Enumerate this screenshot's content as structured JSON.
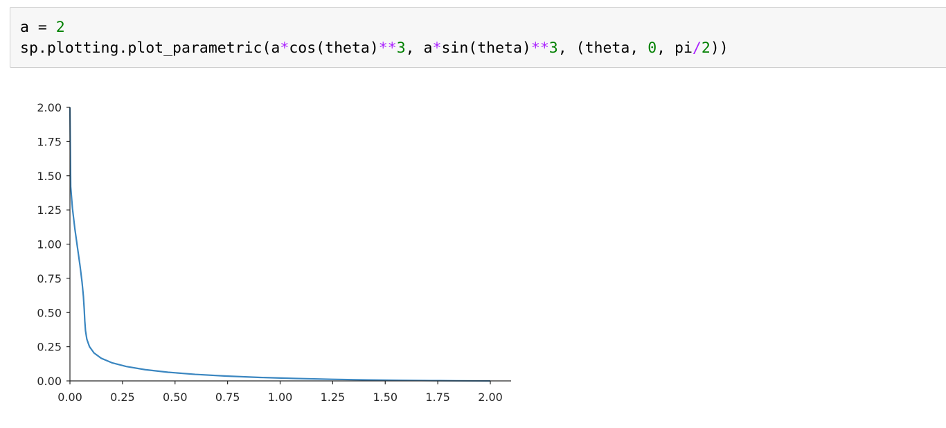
{
  "cell": {
    "lines": [
      [
        {
          "text": "a ",
          "kind": "plain"
        },
        {
          "text": "=",
          "kind": "plain"
        },
        {
          "text": " ",
          "kind": "plain"
        },
        {
          "text": "2",
          "kind": "num"
        }
      ],
      [
        {
          "text": "sp.plotting.plot_parametric(a",
          "kind": "plain"
        },
        {
          "text": "*",
          "kind": "op"
        },
        {
          "text": "cos(theta)",
          "kind": "plain"
        },
        {
          "text": "**",
          "kind": "op"
        },
        {
          "text": "3",
          "kind": "num"
        },
        {
          "text": ", a",
          "kind": "plain"
        },
        {
          "text": "*",
          "kind": "op"
        },
        {
          "text": "sin(theta)",
          "kind": "plain"
        },
        {
          "text": "**",
          "kind": "op"
        },
        {
          "text": "3",
          "kind": "num"
        },
        {
          "text": ", (theta, ",
          "kind": "plain"
        },
        {
          "text": "0",
          "kind": "num"
        },
        {
          "text": ", pi",
          "kind": "plain"
        },
        {
          "text": "/",
          "kind": "op"
        },
        {
          "text": "2",
          "kind": "num"
        },
        {
          "text": "))",
          "kind": "plain"
        }
      ]
    ]
  },
  "colors": {
    "code_number": "#008000",
    "code_operator": "#aa22ff",
    "series_line": "#3a86c0",
    "axis": "#262626"
  },
  "chart_data": {
    "type": "line",
    "title": "",
    "xlabel": "",
    "ylabel": "",
    "xlim": [
      0,
      2
    ],
    "ylim": [
      0,
      2
    ],
    "grid": false,
    "xticks": [
      "0.00",
      "0.25",
      "0.50",
      "0.75",
      "1.00",
      "1.25",
      "1.50",
      "1.75",
      "2.00"
    ],
    "yticks": [
      "0.00",
      "0.25",
      "0.50",
      "0.75",
      "1.00",
      "1.25",
      "1.50",
      "1.75",
      "2.00"
    ],
    "series": [
      {
        "x": [
          2.0,
          1.9815,
          1.9266,
          1.8379,
          1.7197,
          1.5774,
          1.4178,
          1.2476,
          1.0741,
          0.9038,
          0.743,
          0.5962,
          0.4669,
          0.3573,
          0.2682,
          0.1993,
          0.1489,
          0.1145,
          0.0929,
          0.0805,
          0.074,
          0.0706,
          0.068,
          0.0641,
          0.0575,
          0.048,
          0.0361,
          0.0233,
          0.0118,
          0.0036,
          0.0
        ],
        "y": [
          0.0,
          0.0,
          0.0003,
          0.0009,
          0.0022,
          0.0042,
          0.0073,
          0.0117,
          0.0176,
          0.0254,
          0.0353,
          0.0478,
          0.0634,
          0.0823,
          0.1052,
          0.1327,
          0.1655,
          0.2045,
          0.2504,
          0.3042,
          0.3669,
          0.4394,
          0.5225,
          0.617,
          0.7233,
          0.8417,
          0.9719,
          1.113,
          1.2634,
          1.4206,
          2.0
        ]
      }
    ]
  }
}
